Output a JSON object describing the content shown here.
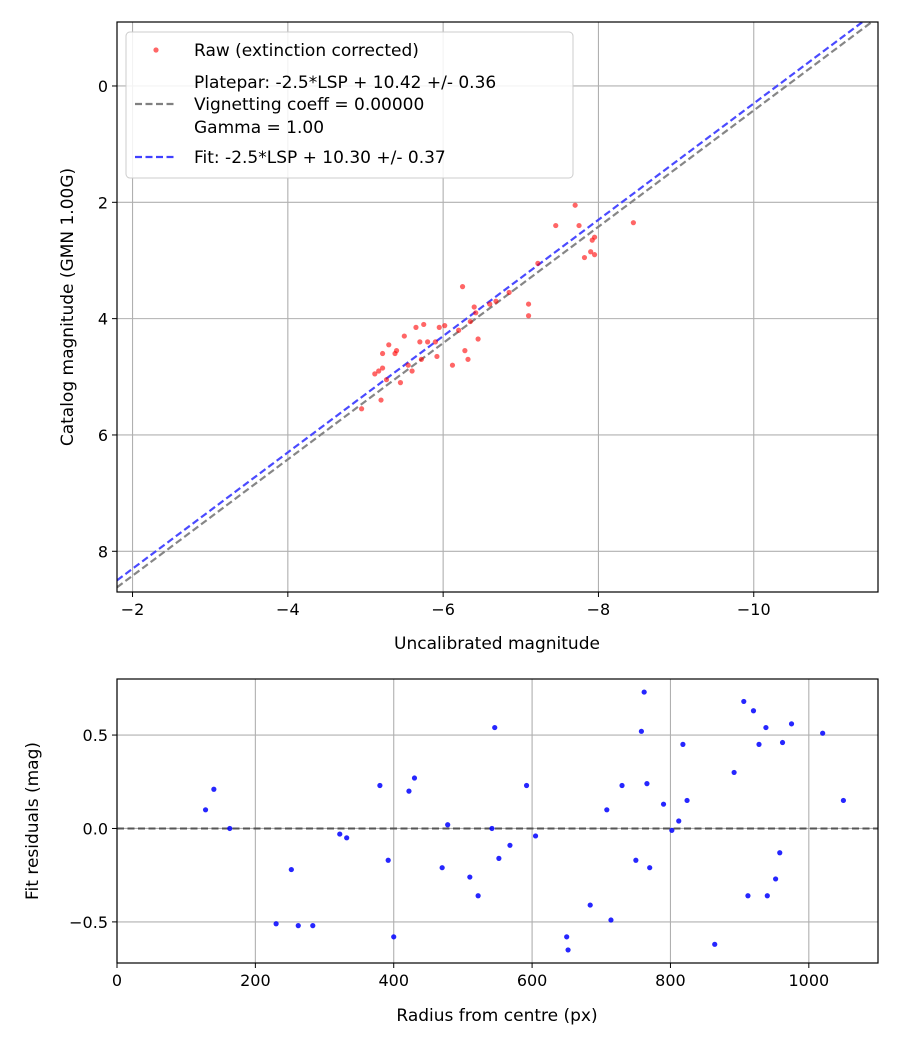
{
  "chart_data": [
    {
      "type": "scatter",
      "xlabel": "Uncalibrated magnitude",
      "ylabel": "Catalog magnitude (GMN 1.00G)",
      "xlim": [
        -1.8,
        -11.6
      ],
      "ylim": [
        8.7,
        -1.1
      ],
      "x_ticks": [
        -2,
        -4,
        -6,
        -8,
        -10
      ],
      "x_tick_labels": [
        "−2",
        "−4",
        "−6",
        "−8",
        "−10"
      ],
      "y_ticks": [
        0,
        2,
        4,
        6,
        8
      ],
      "y_tick_labels": [
        "0",
        "2",
        "4",
        "6",
        "8"
      ],
      "grid": true,
      "legend": {
        "location": "top-left",
        "entries": [
          {
            "label": "Raw (extinction corrected)",
            "kind": "marker",
            "color": "#ff0000"
          },
          {
            "label": "Platepar: -2.5*LSP + 10.42 +/- 0.36",
            "kind": "none"
          },
          {
            "label": "Vignetting coeff = 0.00000",
            "kind": "line",
            "color": "#808080"
          },
          {
            "label": "Gamma = 1.00",
            "kind": "none"
          },
          {
            "label": "Fit: -2.5*LSP + 10.30 +/- 0.37",
            "kind": "line",
            "color": "#4040ff"
          }
        ]
      },
      "series": [
        {
          "name": "Raw (extinction corrected)",
          "kind": "points",
          "color": "#ff0000",
          "x": [
            -4.95,
            -5.12,
            -5.17,
            -5.2,
            -5.22,
            -5.27,
            -5.3,
            -5.22,
            -5.45,
            -5.5,
            -5.38,
            -5.4,
            -5.6,
            -5.55,
            -5.75,
            -5.7,
            -5.8,
            -5.65,
            -5.72,
            -5.9,
            -5.95,
            -5.92,
            -6.02,
            -6.12,
            -6.2,
            -6.25,
            -6.28,
            -6.32,
            -6.35,
            -6.4,
            -6.42,
            -6.45,
            -6.6,
            -6.68,
            -6.85,
            -7.1,
            -7.1,
            -7.22,
            -7.45,
            -7.7,
            -7.75,
            -7.82,
            -7.9,
            -7.92,
            -7.95,
            -7.95,
            -8.45
          ],
          "y": [
            5.55,
            4.95,
            4.9,
            5.4,
            4.6,
            5.05,
            4.45,
            4.85,
            5.1,
            4.3,
            4.6,
            4.55,
            4.9,
            4.8,
            4.1,
            4.4,
            4.4,
            4.15,
            4.7,
            4.4,
            4.15,
            4.65,
            4.12,
            4.8,
            4.2,
            3.45,
            4.55,
            4.7,
            4.05,
            3.8,
            3.9,
            4.35,
            3.75,
            3.7,
            3.55,
            3.75,
            3.95,
            3.05,
            2.4,
            2.05,
            2.4,
            2.95,
            2.85,
            2.65,
            2.6,
            2.9,
            2.35
          ]
        },
        {
          "name": "Platepar",
          "kind": "dashed-line",
          "color": "#808080",
          "x": [
            -1.8,
            -11.6
          ],
          "y": [
            8.62,
            -1.18
          ]
        },
        {
          "name": "Fit",
          "kind": "dashed-line",
          "color": "#4040ff",
          "x": [
            -1.8,
            -11.6
          ],
          "y": [
            8.5,
            -1.3
          ]
        }
      ]
    },
    {
      "type": "scatter",
      "xlabel": "Radius from centre (px)",
      "ylabel": "Fit residuals (mag)",
      "xlim": [
        0,
        1100
      ],
      "ylim": [
        -0.72,
        0.8
      ],
      "x_ticks": [
        0,
        200,
        400,
        600,
        800,
        1000
      ],
      "x_tick_labels": [
        "0",
        "200",
        "400",
        "600",
        "800",
        "1000"
      ],
      "y_ticks": [
        0.5,
        0.0,
        -0.5
      ],
      "y_tick_labels": [
        "0.5",
        "0.0",
        "−0.5"
      ],
      "grid": true,
      "series": [
        {
          "name": "Residuals",
          "kind": "points",
          "color": "#0000ff",
          "x": [
            128,
            140,
            163,
            230,
            252,
            262,
            283,
            322,
            332,
            380,
            392,
            400,
            422,
            430,
            470,
            478,
            510,
            522,
            542,
            546,
            552,
            568,
            592,
            605,
            650,
            652,
            684,
            708,
            714,
            730,
            750,
            758,
            762,
            766,
            770,
            790,
            802,
            812,
            818,
            824,
            864,
            892,
            906,
            912,
            920,
            928,
            938,
            940,
            952,
            958,
            962,
            975,
            1020,
            1050
          ],
          "y": [
            0.1,
            0.21,
            0.0,
            -0.51,
            -0.22,
            -0.52,
            -0.52,
            -0.03,
            -0.05,
            0.23,
            -0.17,
            -0.58,
            0.2,
            0.27,
            -0.21,
            0.02,
            -0.26,
            -0.36,
            0.0,
            0.54,
            -0.16,
            -0.09,
            0.23,
            -0.04,
            -0.58,
            -0.65,
            -0.41,
            0.1,
            -0.49,
            0.23,
            -0.17,
            0.52,
            0.73,
            0.24,
            -0.21,
            0.13,
            -0.01,
            0.04,
            0.45,
            0.15,
            -0.62,
            0.3,
            0.68,
            -0.36,
            0.63,
            0.45,
            0.54,
            -0.36,
            -0.27,
            -0.13,
            0.46,
            0.56,
            0.51,
            0.15
          ]
        }
      ],
      "reference_line": {
        "y": 0.0,
        "color": "#555555",
        "style": "dashed"
      }
    }
  ]
}
